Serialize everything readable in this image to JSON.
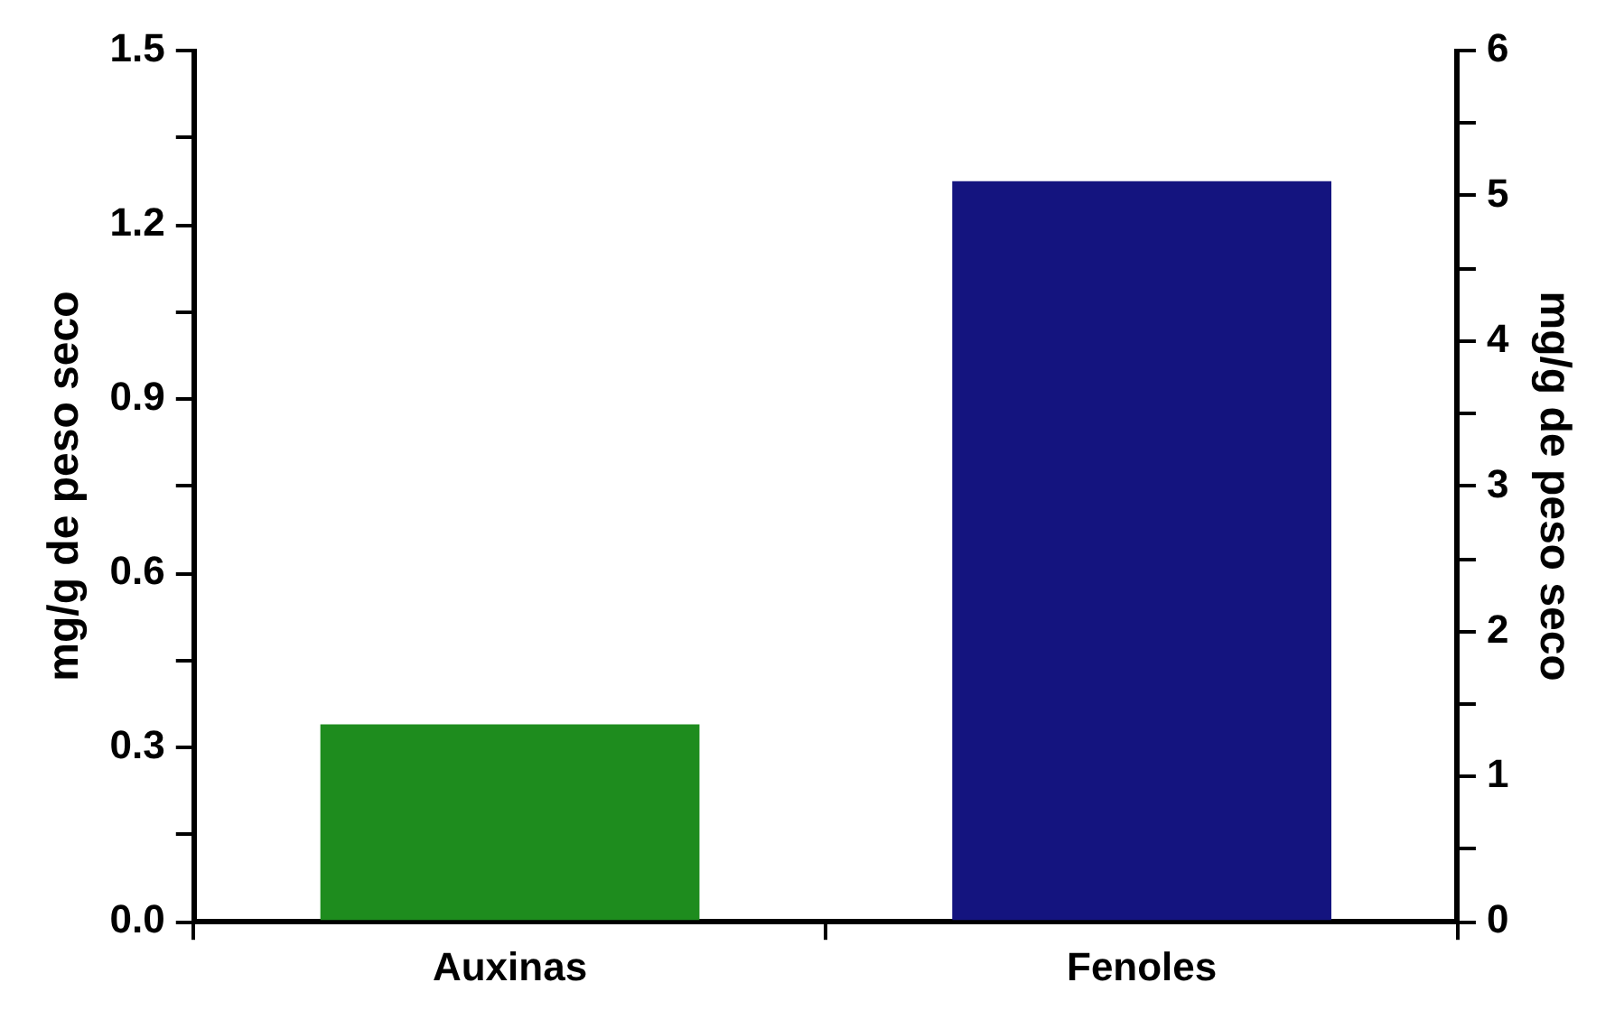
{
  "chart_data": {
    "type": "bar",
    "categories": [
      "Auxinas",
      "Fenoles"
    ],
    "ylabel": "mg/g de peso seco",
    "y2label": "mg/g de peso seco",
    "series": [
      {
        "color": "#1e8c1e",
        "values": [
          0.34,
          null
        ]
      },
      {
        "color": "#14147f",
        "values": [
          null,
          5.1
        ],
        "axis": "y2"
      }
    ],
    "ylim": [
      0,
      1.5
    ],
    "yticks": [
      {
        "value": 0,
        "label": "0.0"
      },
      {
        "value": 0.15,
        "label": null
      },
      {
        "value": 0.3,
        "label": "0.3"
      },
      {
        "value": 0.45,
        "label": null
      },
      {
        "value": 0.6,
        "label": "0.6"
      },
      {
        "value": 0.75,
        "label": null
      },
      {
        "value": 0.9,
        "label": "0.9"
      },
      {
        "value": 1.05,
        "label": null
      },
      {
        "value": 1.2,
        "label": "1.2"
      },
      {
        "value": 1.35,
        "label": null
      },
      {
        "value": 1.5,
        "label": "1.5"
      }
    ],
    "y2lim": [
      0,
      6
    ],
    "y2ticks": [
      0,
      {
        "value": 0.5,
        "label": null
      },
      1,
      {
        "value": 1.5,
        "label": null
      },
      2,
      {
        "value": 2.5,
        "label": null
      },
      3,
      {
        "value": 3.5,
        "label": null
      },
      4,
      {
        "value": 4.5,
        "label": null
      },
      5,
      {
        "value": 5.5,
        "label": null
      },
      6
    ],
    "grid": false,
    "legend": false
  }
}
